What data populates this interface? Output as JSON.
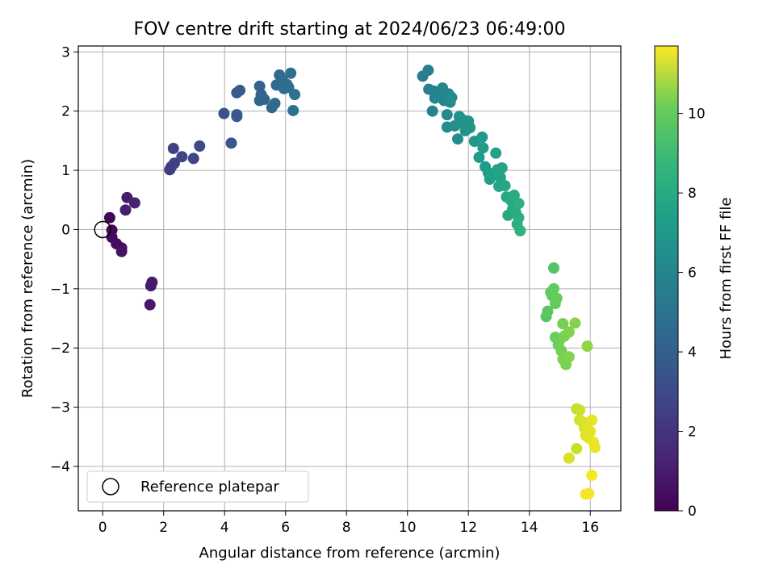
{
  "chart_data": {
    "type": "scatter",
    "title": "FOV centre drift starting at 2024/06/23 06:49:00",
    "xlabel": "Angular distance from reference (arcmin)",
    "ylabel": "Rotation from reference (arcmin)",
    "xlim": [
      -0.8,
      17.0
    ],
    "ylim": [
      -4.75,
      3.1
    ],
    "xticks": [
      "0",
      "2",
      "4",
      "6",
      "8",
      "10",
      "12",
      "14",
      "16"
    ],
    "yticks": [
      "3",
      "2",
      "1",
      "0",
      "−1",
      "−2",
      "−3",
      "−4"
    ],
    "grid": true,
    "legend": {
      "placement": "lower-left",
      "label": "Reference platepar"
    },
    "reference_point": [
      0,
      0
    ],
    "colorbar": {
      "label": "Hours from first FF file",
      "colormap": "viridis",
      "range": [
        0,
        11.7
      ],
      "ticks": [
        "0",
        "2",
        "4",
        "6",
        "8",
        "10"
      ]
    },
    "points": [
      {
        "x": 0.23,
        "y": 0.2,
        "t": 0.1
      },
      {
        "x": 0.3,
        "y": -0.01,
        "t": 0.2
      },
      {
        "x": 0.3,
        "y": -0.13,
        "t": 0.3
      },
      {
        "x": 0.45,
        "y": -0.24,
        "t": 0.4
      },
      {
        "x": 0.62,
        "y": -0.31,
        "t": 0.5
      },
      {
        "x": 0.62,
        "y": -0.37,
        "t": 0.6
      },
      {
        "x": 0.8,
        "y": 0.54,
        "t": 0.9
      },
      {
        "x": 0.75,
        "y": 0.33,
        "t": 1.0
      },
      {
        "x": 1.05,
        "y": 0.45,
        "t": 1.1
      },
      {
        "x": 1.55,
        "y": -1.27,
        "t": 0.7
      },
      {
        "x": 1.58,
        "y": -0.95,
        "t": 0.8
      },
      {
        "x": 1.62,
        "y": -0.89,
        "t": 0.85
      },
      {
        "x": 2.2,
        "y": 1.01,
        "t": 2.0
      },
      {
        "x": 2.25,
        "y": 1.06,
        "t": 2.1
      },
      {
        "x": 2.35,
        "y": 1.12,
        "t": 2.2
      },
      {
        "x": 2.32,
        "y": 1.37,
        "t": 2.3
      },
      {
        "x": 2.6,
        "y": 1.23,
        "t": 2.4
      },
      {
        "x": 2.98,
        "y": 1.2,
        "t": 2.5
      },
      {
        "x": 3.18,
        "y": 1.41,
        "t": 2.6
      },
      {
        "x": 3.98,
        "y": 1.96,
        "t": 3.0
      },
      {
        "x": 4.22,
        "y": 1.46,
        "t": 3.1
      },
      {
        "x": 4.4,
        "y": 1.94,
        "t": 3.2
      },
      {
        "x": 4.4,
        "y": 1.91,
        "t": 3.25
      },
      {
        "x": 4.4,
        "y": 2.31,
        "t": 3.3
      },
      {
        "x": 4.5,
        "y": 2.35,
        "t": 3.35
      },
      {
        "x": 5.15,
        "y": 2.42,
        "t": 3.6
      },
      {
        "x": 5.2,
        "y": 2.28,
        "t": 3.7
      },
      {
        "x": 5.15,
        "y": 2.18,
        "t": 3.75
      },
      {
        "x": 5.3,
        "y": 2.2,
        "t": 3.8
      },
      {
        "x": 5.55,
        "y": 2.06,
        "t": 3.85
      },
      {
        "x": 5.65,
        "y": 2.13,
        "t": 3.9
      },
      {
        "x": 5.7,
        "y": 2.44,
        "t": 4.0
      },
      {
        "x": 5.8,
        "y": 2.61,
        "t": 4.05
      },
      {
        "x": 5.9,
        "y": 2.52,
        "t": 4.1
      },
      {
        "x": 5.95,
        "y": 2.38,
        "t": 4.15
      },
      {
        "x": 6.05,
        "y": 2.45,
        "t": 4.2
      },
      {
        "x": 6.1,
        "y": 2.4,
        "t": 4.25
      },
      {
        "x": 6.17,
        "y": 2.64,
        "t": 4.3
      },
      {
        "x": 6.25,
        "y": 2.01,
        "t": 4.35
      },
      {
        "x": 6.3,
        "y": 2.28,
        "t": 4.4
      },
      {
        "x": 10.5,
        "y": 2.59,
        "t": 5.0
      },
      {
        "x": 10.68,
        "y": 2.69,
        "t": 5.1
      },
      {
        "x": 10.7,
        "y": 2.37,
        "t": 5.15
      },
      {
        "x": 10.85,
        "y": 2.34,
        "t": 5.2
      },
      {
        "x": 10.82,
        "y": 2.0,
        "t": 5.25
      },
      {
        "x": 10.9,
        "y": 2.22,
        "t": 5.3
      },
      {
        "x": 11.05,
        "y": 2.3,
        "t": 5.35
      },
      {
        "x": 11.15,
        "y": 2.39,
        "t": 5.4
      },
      {
        "x": 11.2,
        "y": 2.18,
        "t": 5.45
      },
      {
        "x": 11.35,
        "y": 2.29,
        "t": 5.5
      },
      {
        "x": 11.3,
        "y": 1.94,
        "t": 5.55
      },
      {
        "x": 11.4,
        "y": 2.15,
        "t": 5.6
      },
      {
        "x": 11.45,
        "y": 2.23,
        "t": 5.65
      },
      {
        "x": 11.3,
        "y": 1.73,
        "t": 5.7
      },
      {
        "x": 11.55,
        "y": 1.75,
        "t": 5.75
      },
      {
        "x": 11.65,
        "y": 1.53,
        "t": 5.8
      },
      {
        "x": 11.68,
        "y": 1.8,
        "t": 5.85
      },
      {
        "x": 11.7,
        "y": 1.91,
        "t": 5.9
      },
      {
        "x": 11.8,
        "y": 1.86,
        "t": 5.95
      },
      {
        "x": 11.9,
        "y": 1.67,
        "t": 6.0
      },
      {
        "x": 12.0,
        "y": 1.83,
        "t": 6.05
      },
      {
        "x": 12.05,
        "y": 1.72,
        "t": 6.1
      },
      {
        "x": 12.2,
        "y": 1.49,
        "t": 6.2
      },
      {
        "x": 12.35,
        "y": 1.22,
        "t": 6.3
      },
      {
        "x": 12.45,
        "y": 1.56,
        "t": 6.35
      },
      {
        "x": 12.48,
        "y": 1.38,
        "t": 6.4
      },
      {
        "x": 12.55,
        "y": 1.06,
        "t": 6.45
      },
      {
        "x": 12.65,
        "y": 0.96,
        "t": 6.5
      },
      {
        "x": 12.7,
        "y": 0.85,
        "t": 6.55
      },
      {
        "x": 12.8,
        "y": 0.92,
        "t": 6.6
      },
      {
        "x": 12.9,
        "y": 1.29,
        "t": 6.65
      },
      {
        "x": 12.95,
        "y": 1.01,
        "t": 6.7
      },
      {
        "x": 13.05,
        "y": 0.88,
        "t": 6.75
      },
      {
        "x": 13.0,
        "y": 0.73,
        "t": 6.8
      },
      {
        "x": 13.1,
        "y": 1.04,
        "t": 6.85
      },
      {
        "x": 13.2,
        "y": 0.74,
        "t": 6.9
      },
      {
        "x": 13.25,
        "y": 0.55,
        "t": 6.95
      },
      {
        "x": 13.3,
        "y": 0.24,
        "t": 7.0
      },
      {
        "x": 13.4,
        "y": 0.49,
        "t": 7.05
      },
      {
        "x": 13.45,
        "y": 0.35,
        "t": 7.1
      },
      {
        "x": 13.5,
        "y": 0.58,
        "t": 7.15
      },
      {
        "x": 13.55,
        "y": 0.29,
        "t": 7.2
      },
      {
        "x": 13.6,
        "y": 0.09,
        "t": 7.3
      },
      {
        "x": 13.65,
        "y": 0.2,
        "t": 7.35
      },
      {
        "x": 13.65,
        "y": 0.44,
        "t": 7.4
      },
      {
        "x": 13.7,
        "y": -0.02,
        "t": 7.5
      },
      {
        "x": 14.55,
        "y": -1.47,
        "t": 8.6
      },
      {
        "x": 14.6,
        "y": -1.38,
        "t": 8.7
      },
      {
        "x": 14.7,
        "y": -1.06,
        "t": 8.75
      },
      {
        "x": 14.75,
        "y": -1.12,
        "t": 8.8
      },
      {
        "x": 14.8,
        "y": -0.65,
        "t": 8.5
      },
      {
        "x": 14.8,
        "y": -1.0,
        "t": 8.85
      },
      {
        "x": 14.85,
        "y": -1.25,
        "t": 8.9
      },
      {
        "x": 14.9,
        "y": -1.16,
        "t": 8.95
      },
      {
        "x": 14.85,
        "y": -1.82,
        "t": 9.0
      },
      {
        "x": 14.95,
        "y": -1.95,
        "t": 9.05
      },
      {
        "x": 15.0,
        "y": -1.86,
        "t": 9.1
      },
      {
        "x": 15.05,
        "y": -2.05,
        "t": 9.15
      },
      {
        "x": 15.1,
        "y": -1.59,
        "t": 9.2
      },
      {
        "x": 15.15,
        "y": -1.8,
        "t": 9.25
      },
      {
        "x": 15.1,
        "y": -2.19,
        "t": 9.3
      },
      {
        "x": 15.2,
        "y": -2.28,
        "t": 9.35
      },
      {
        "x": 15.3,
        "y": -1.73,
        "t": 9.4
      },
      {
        "x": 15.3,
        "y": -2.15,
        "t": 9.45
      },
      {
        "x": 15.5,
        "y": -1.58,
        "t": 9.5
      },
      {
        "x": 15.9,
        "y": -1.97,
        "t": 9.7
      },
      {
        "x": 15.55,
        "y": -3.03,
        "t": 10.6
      },
      {
        "x": 15.55,
        "y": -3.7,
        "t": 10.7
      },
      {
        "x": 15.65,
        "y": -3.05,
        "t": 10.8
      },
      {
        "x": 15.65,
        "y": -3.22,
        "t": 10.9
      },
      {
        "x": 15.75,
        "y": -3.25,
        "t": 11.0
      },
      {
        "x": 15.8,
        "y": -3.35,
        "t": 11.05
      },
      {
        "x": 15.85,
        "y": -3.48,
        "t": 11.1
      },
      {
        "x": 15.9,
        "y": -3.3,
        "t": 11.15
      },
      {
        "x": 15.95,
        "y": -3.52,
        "t": 11.2
      },
      {
        "x": 16.0,
        "y": -3.41,
        "t": 11.25
      },
      {
        "x": 16.05,
        "y": -3.22,
        "t": 11.3
      },
      {
        "x": 16.1,
        "y": -3.59,
        "t": 11.35
      },
      {
        "x": 16.15,
        "y": -3.68,
        "t": 11.4
      },
      {
        "x": 15.3,
        "y": -3.86,
        "t": 11.0
      },
      {
        "x": 15.85,
        "y": -4.47,
        "t": 11.5
      },
      {
        "x": 15.95,
        "y": -4.46,
        "t": 11.55
      },
      {
        "x": 16.05,
        "y": -4.15,
        "t": 11.6
      }
    ]
  }
}
